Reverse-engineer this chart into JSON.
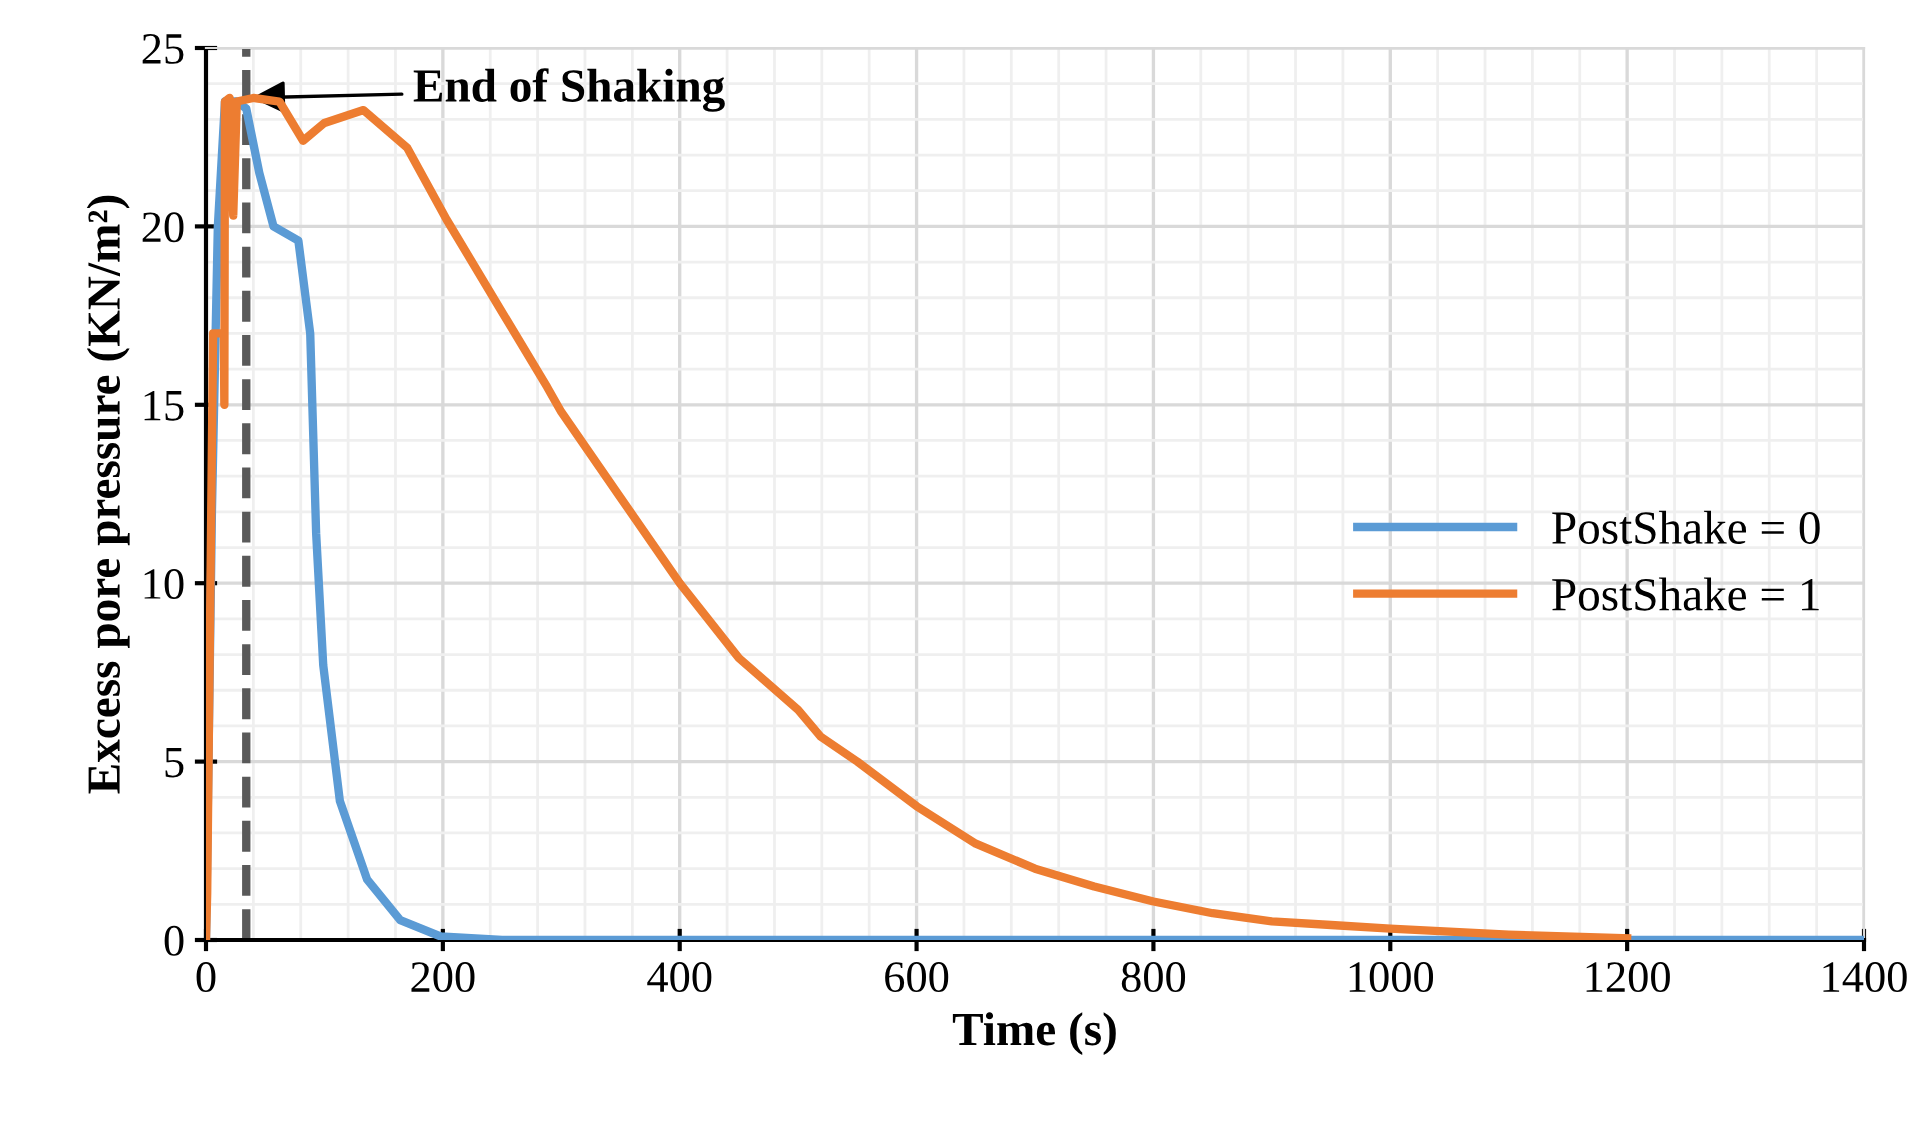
{
  "chart_data": {
    "type": "line",
    "xlabel": "Time (s)",
    "ylabel": "Excess pore pressure (KN/m²)",
    "xlim": [
      0,
      1400
    ],
    "xticks": [
      0,
      200,
      400,
      600,
      800,
      1000,
      1200,
      1400
    ],
    "ylim": [
      0,
      25
    ],
    "yticks": [
      0,
      5,
      10,
      15,
      20,
      25
    ],
    "grid": true,
    "legend": "right",
    "marker": "none",
    "line_style": "solid",
    "ref_lines": [
      {
        "axis": "x",
        "value": 34,
        "color": "#595959",
        "line_style": "dashed"
      }
    ],
    "annotations": [
      {
        "text": "End of Shaking",
        "x": 34,
        "y": 23.6
      }
    ],
    "series": [
      {
        "name": "PostShake = 0",
        "color": "#5b9bd5",
        "x": [
          0,
          5,
          10,
          16,
          20,
          26,
          34,
          45,
          57,
          78,
          88,
          93,
          99,
          113,
          136,
          164,
          198,
          250,
          1400
        ],
        "values": [
          0,
          12,
          20,
          23.5,
          23.5,
          23.5,
          23.3,
          21.5,
          20.0,
          19.6,
          17.0,
          11.4,
          7.7,
          3.9,
          1.7,
          0.56,
          0.1,
          0,
          0
        ]
      },
      {
        "name": "PostShake = 1",
        "color": "#ed7d31",
        "x": [
          0,
          1,
          6,
          7,
          15,
          15.5,
          16,
          20,
          23,
          26,
          40,
          62,
          82,
          100,
          133,
          170,
          203,
          250,
          288,
          300,
          350,
          400,
          450,
          500,
          519,
          550,
          600,
          650,
          700,
          750,
          800,
          850,
          900,
          950,
          1000,
          1100,
          1200
        ],
        "values": [
          0,
          1.3,
          17,
          17,
          17,
          15,
          23.5,
          23.6,
          20.3,
          23.5,
          23.6,
          23.5,
          22.4,
          22.9,
          23.26,
          22.2,
          20.2,
          17.6,
          15.5,
          14.8,
          12.4,
          10.0,
          7.9,
          6.45,
          5.7,
          5.0,
          3.75,
          2.7,
          2.0,
          1.5,
          1.08,
          0.75,
          0.52,
          0.42,
          0.32,
          0.15,
          0.05
        ]
      }
    ]
  }
}
